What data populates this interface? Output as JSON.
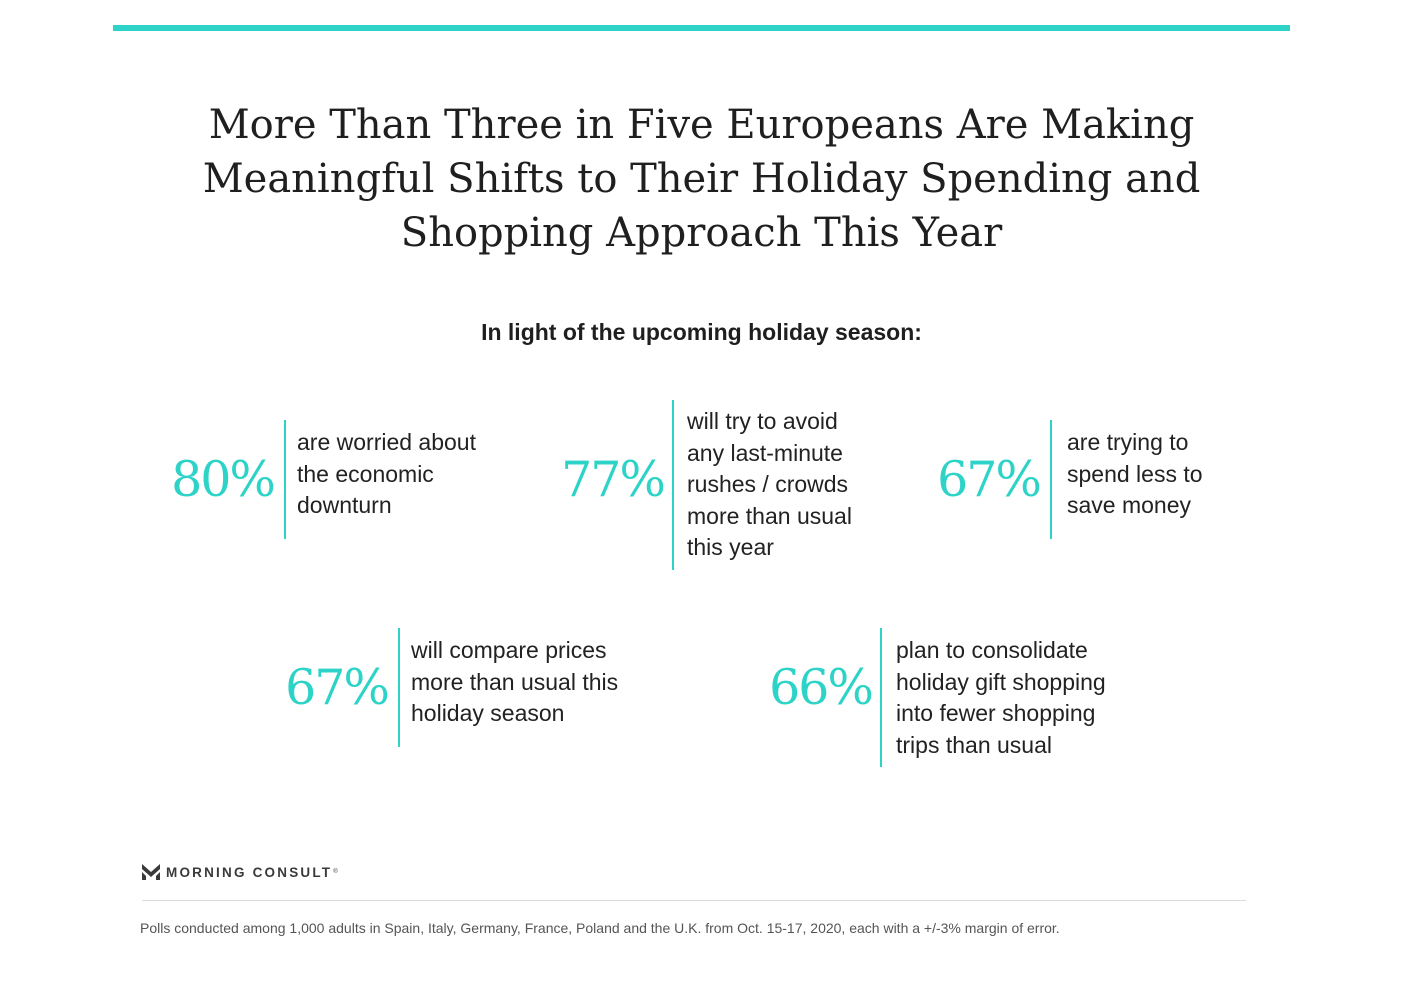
{
  "title_lines": [
    "More Than Three in Five Europeans Are Making",
    "Meaningful Shifts to Their Holiday Spending and",
    "Shopping Approach This Year"
  ],
  "subtitle": "In light of the upcoming holiday season:",
  "stats": [
    {
      "value": "80%",
      "lines": [
        "are worried about",
        "the economic",
        "downturn"
      ]
    },
    {
      "value": "77%",
      "lines": [
        "will try to avoid",
        "any last-minute",
        "rushes / crowds",
        "more than usual",
        "this year"
      ]
    },
    {
      "value": "67%",
      "lines": [
        "are trying to",
        "spend less to",
        "save money"
      ]
    },
    {
      "value": "67%",
      "lines": [
        "will compare prices",
        "more than usual this",
        "holiday season"
      ]
    },
    {
      "value": "66%",
      "lines": [
        "plan to consolidate",
        "holiday gift shopping",
        "into fewer shopping",
        "trips than usual"
      ]
    }
  ],
  "footer": {
    "logo_text": "MORNING CONSULT",
    "logo_icon": "morning-consult-logo-icon",
    "registered_mark": "®",
    "note": "Polls conducted among 1,000 adults in Spain, Italy, Germany, France, Poland and the U.K. from Oct. 15-17, 2020, each with a +/-3% margin of error."
  },
  "colors": {
    "accent": "#2ed3c8",
    "text": "#222222",
    "muted": "#555555"
  }
}
